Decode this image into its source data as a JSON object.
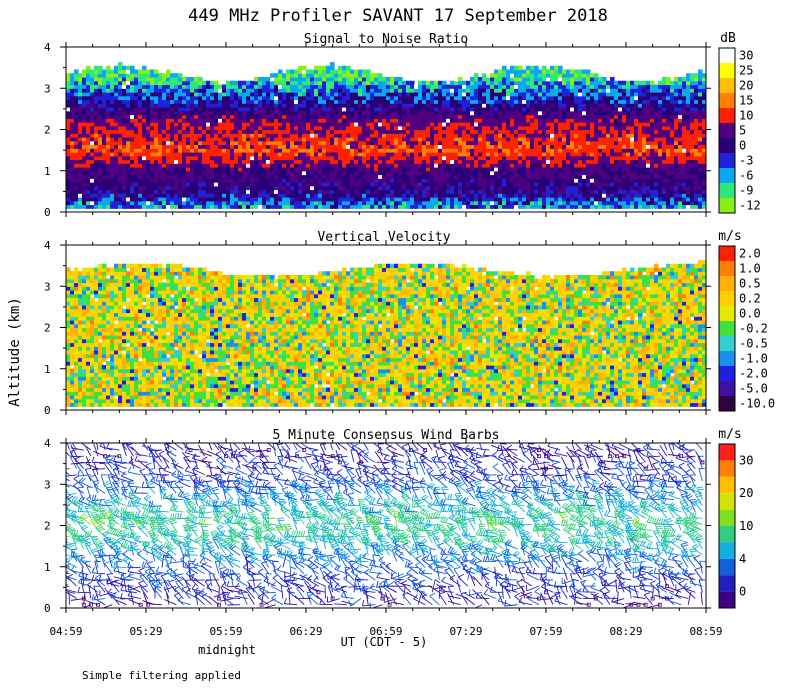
{
  "figure": {
    "title": "449 MHz Profiler SAVANT 17 September 2018",
    "ylabel": "Altitude (km)",
    "xlabel": "UT  (CDT - 5)",
    "midnight_label": "midnight",
    "footnote": "Simple filtering applied",
    "time_ticks": [
      "04:59",
      "05:29",
      "05:59",
      "06:29",
      "06:59",
      "07:29",
      "07:59",
      "08:29",
      "08:59"
    ]
  },
  "chart_data": [
    {
      "type": "heatmap",
      "title": "Signal to Noise Ratio",
      "colorbar_unit": "dB",
      "x_range": [
        "04:59",
        "08:59"
      ],
      "ylim": [
        0,
        4
      ],
      "yticks": [
        "0",
        "1",
        "2",
        "3",
        "4"
      ],
      "colorbar_labels": [
        "30",
        "25",
        "20",
        "15",
        "10",
        "5",
        "0",
        "-3",
        "-6",
        "-9",
        "-12"
      ],
      "colors": [
        "#ffffff",
        "#ffff00",
        "#ffc000",
        "#ff8000",
        "#ff2000",
        "#500080",
        "#2a0078",
        "#1e22d8",
        "#0aa8f0",
        "#30e878",
        "#88f018"
      ],
      "profile": [
        {
          "alt": 0.1,
          "value": -6
        },
        {
          "alt": 0.5,
          "value": 1
        },
        {
          "alt": 1.0,
          "value": 4
        },
        {
          "alt": 1.5,
          "value": 12
        },
        {
          "alt": 1.8,
          "value": 10
        },
        {
          "alt": 2.2,
          "value": 7
        },
        {
          "alt": 2.7,
          "value": -2
        },
        {
          "alt": 3.0,
          "value": -5
        },
        {
          "alt": 3.3,
          "value": -9
        }
      ]
    },
    {
      "type": "heatmap",
      "title": "Vertical Velocity",
      "colorbar_unit": "m/s",
      "x_range": [
        "04:59",
        "08:59"
      ],
      "ylim": [
        0,
        4
      ],
      "yticks": [
        "0",
        "1",
        "2",
        "3",
        "4"
      ],
      "colorbar_labels": [
        "2.0",
        "1.0",
        "0.5",
        "0.2",
        "0.0",
        "-0.2",
        "-0.5",
        "-1.0",
        "-2.0",
        "-5.0",
        "-10.0"
      ],
      "colors": [
        "#ff2000",
        "#ff8000",
        "#ffb000",
        "#ffd000",
        "#e8e800",
        "#40e040",
        "#30d0d0",
        "#1890f0",
        "#2020e0",
        "#4010a0",
        "#300040"
      ],
      "top_altitude_km": 3.5,
      "dominant_range": [
        "-0.2",
        "0.2"
      ]
    },
    {
      "type": "scatter",
      "title": "5 Minute Consensus Wind Barbs",
      "colorbar_unit": "m/s",
      "x_range": [
        "04:59",
        "08:59"
      ],
      "ylim": [
        0,
        4
      ],
      "yticks": [
        "0",
        "1",
        "2",
        "3",
        "4"
      ],
      "colorbar_labels": [
        "30",
        "20",
        "10",
        "4",
        "0"
      ],
      "colors": [
        "#ff2020",
        "#ff8000",
        "#ffc000",
        "#d8e000",
        "#80e020",
        "#30d080",
        "#10b0e0",
        "#1060e0",
        "#2020c0",
        "#400080"
      ],
      "speed_profile": [
        {
          "alt": 0.2,
          "speed": 3
        },
        {
          "alt": 0.8,
          "speed": 5
        },
        {
          "alt": 1.5,
          "speed": 12
        },
        {
          "alt": 2.0,
          "speed": 14
        },
        {
          "alt": 2.5,
          "speed": 10
        },
        {
          "alt": 3.0,
          "speed": 5
        },
        {
          "alt": 3.6,
          "speed": 3
        }
      ]
    }
  ]
}
